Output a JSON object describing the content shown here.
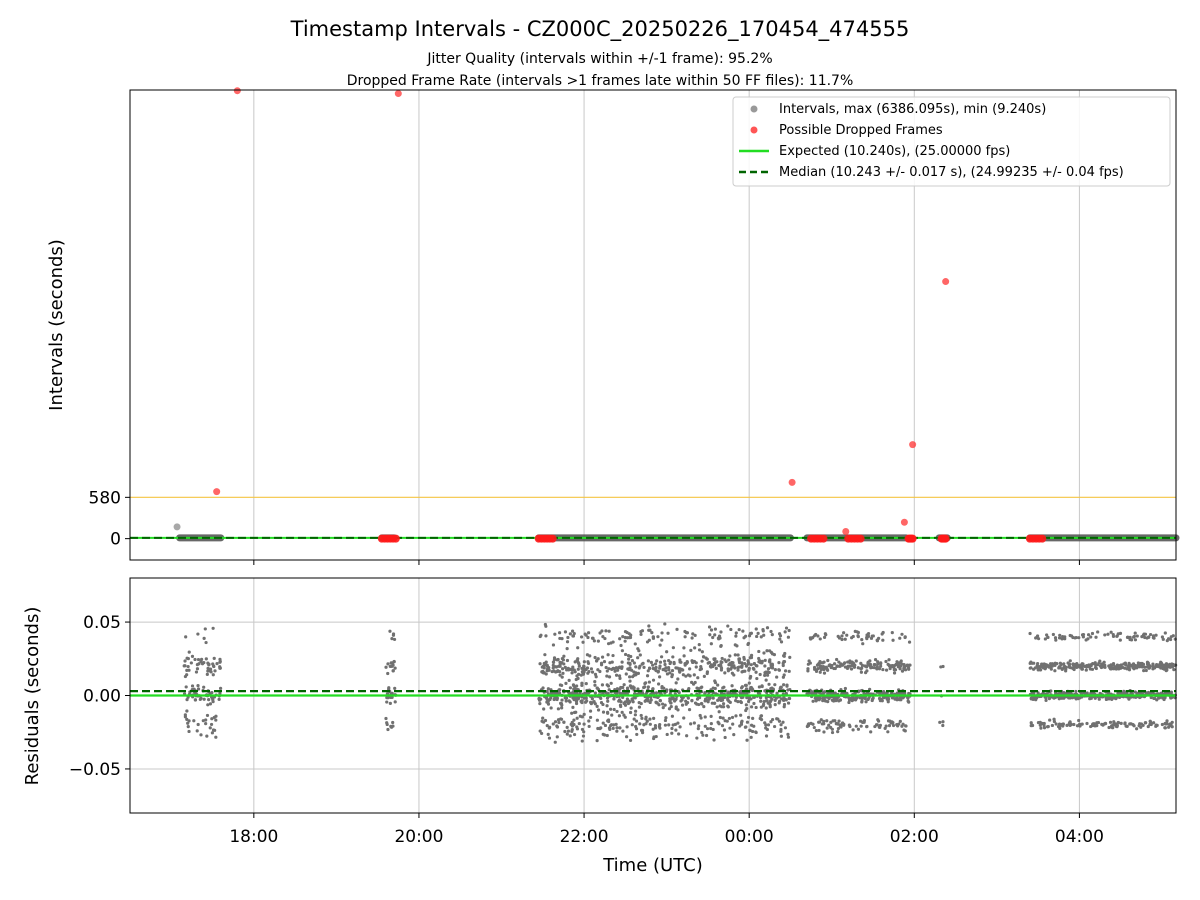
{
  "chart_data": [
    {
      "type": "scatter",
      "title": "Timestamp Intervals - CZ000C_20250226_170454_474555",
      "subtitle_lines": [
        "Jitter Quality (intervals within +/-1 frame): 95.2%",
        "Dropped Frame Rate (intervals >1 frames late within 50 FF files): 11.7%"
      ],
      "xlabel": "",
      "ylabel": "Intervals (seconds)",
      "x_unit": "hours since 00:00 UTC, 2025-02-26",
      "xlim": [
        16.5,
        29.17
      ],
      "ylim": [
        -300,
        6300
      ],
      "yticks": [
        0,
        580
      ],
      "xticks": [
        18,
        20,
        22,
        24,
        26,
        28
      ],
      "xtick_labels": [
        "18:00",
        "20:00",
        "22:00",
        "00:00",
        "02:00",
        "04:00"
      ],
      "grid": "vertical",
      "legend_position": "top-right",
      "legend": [
        "Intervals, max (6386.095s), min (9.240s)",
        "Possible Dropped Frames",
        "Expected (10.240s), (25.00000 fps)",
        "Median (10.243 +/- 0.017 s), (24.99235 +/- 0.04 fps)"
      ],
      "threshold_line": {
        "y": 580,
        "color": "#f5c542"
      },
      "expected_line": {
        "y": 10.24,
        "color": "#22dd22"
      },
      "median_line": {
        "y": 10.243,
        "color": "#006400"
      },
      "interval_segments": [
        {
          "x_start": 17.1,
          "x_end": 17.6
        },
        {
          "x_start": 19.55,
          "x_end": 19.7
        },
        {
          "x_start": 21.45,
          "x_end": 24.5
        },
        {
          "x_start": 24.7,
          "x_end": 25.9
        },
        {
          "x_start": 26.3,
          "x_end": 26.4
        },
        {
          "x_start": 27.4,
          "x_end": 29.17
        }
      ],
      "interval_outliers": [
        {
          "x": 17.07,
          "y": 165
        }
      ],
      "dropped_frames": [
        {
          "x": 17.55,
          "y": 660
        },
        {
          "x": 17.8,
          "y": 6290
        },
        {
          "x": 19.75,
          "y": 6250
        },
        {
          "x": 24.52,
          "y": 790
        },
        {
          "x": 25.17,
          "y": 100
        },
        {
          "x": 25.88,
          "y": 230
        },
        {
          "x": 25.98,
          "y": 1320
        },
        {
          "x": 26.38,
          "y": 3610
        }
      ],
      "dropped_clusters": [
        {
          "x_start": 19.55,
          "x_end": 19.72,
          "y": 0
        },
        {
          "x_start": 21.45,
          "x_end": 21.62,
          "y": 0
        },
        {
          "x_start": 24.75,
          "x_end": 24.9,
          "y": 0
        },
        {
          "x_start": 25.2,
          "x_end": 25.35,
          "y": 0
        },
        {
          "x_start": 25.93,
          "x_end": 25.98,
          "y": 0
        },
        {
          "x_start": 26.33,
          "x_end": 26.38,
          "y": 0
        },
        {
          "x_start": 27.4,
          "x_end": 27.55,
          "y": 0
        }
      ],
      "series_colors": {
        "intervals": "#888888",
        "dropped": "#ff3333",
        "dark_line": "#4d4d4d"
      }
    },
    {
      "type": "scatter",
      "xlabel": "Time (UTC)",
      "ylabel": "Residuals (seconds)",
      "xlim": [
        16.5,
        29.17
      ],
      "ylim": [
        -0.08,
        0.08
      ],
      "yticks": [
        0.05,
        0.0,
        -0.05
      ],
      "ytick_labels": [
        "0.05",
        "0.00",
        "−0.05"
      ],
      "xticks": [
        18,
        20,
        22,
        24,
        26,
        28
      ],
      "xtick_labels": [
        "18:00",
        "20:00",
        "22:00",
        "00:00",
        "02:00",
        "04:00"
      ],
      "grid": "both",
      "expected_residual": 0.0,
      "median_residual": 0.003,
      "point_color": "#707070",
      "clusters": [
        {
          "x_start": 17.15,
          "x_end": 17.6,
          "levels": [
            0.0,
            0.02,
            -0.02,
            0.04
          ],
          "spread": 0.012,
          "n": 130
        },
        {
          "x_start": 19.6,
          "x_end": 19.72,
          "levels": [
            0.0,
            0.02,
            -0.02,
            0.04
          ],
          "spread": 0.008,
          "n": 45
        },
        {
          "x_start": 21.45,
          "x_end": 24.5,
          "levels": [
            0.0,
            0.02,
            -0.02,
            0.04
          ],
          "spread": 0.013,
          "n": 1300
        },
        {
          "x_start": 24.7,
          "x_end": 25.95,
          "levels": [
            0.0,
            0.02,
            -0.02,
            0.04
          ],
          "spread": 0.006,
          "n": 520
        },
        {
          "x_start": 26.3,
          "x_end": 26.38,
          "levels": [
            0.02,
            -0.02,
            0.0
          ],
          "spread": 0.004,
          "n": 6
        },
        {
          "x_start": 27.4,
          "x_end": 29.17,
          "levels": [
            0.0,
            0.02,
            -0.02,
            0.04
          ],
          "spread": 0.004,
          "n": 800
        }
      ]
    }
  ]
}
